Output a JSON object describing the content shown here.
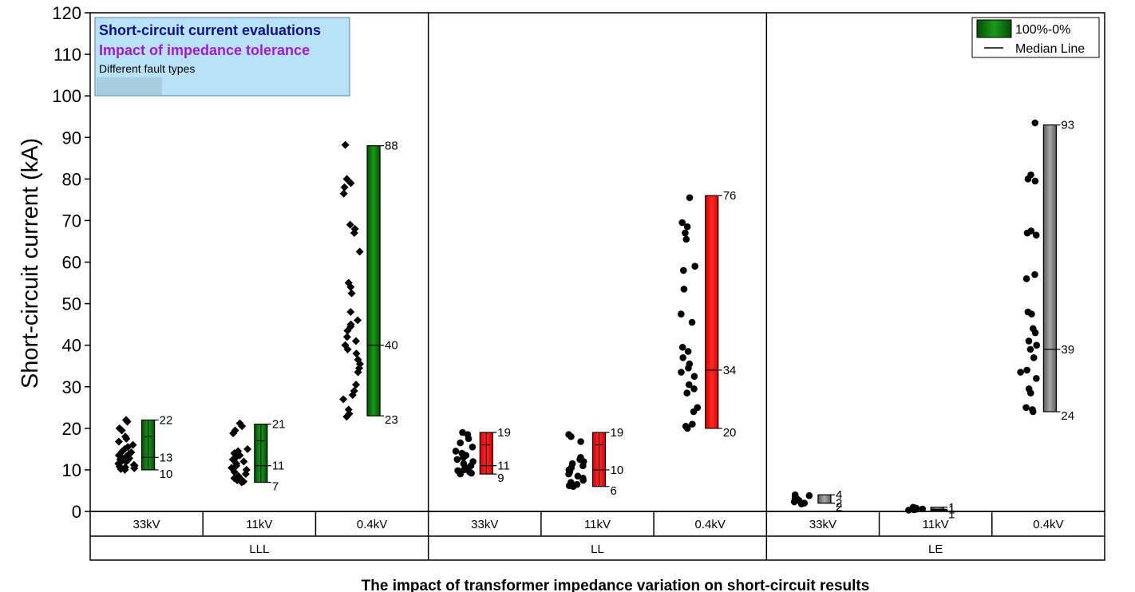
{
  "chart_data": {
    "type": "scatter",
    "title": "The impact of transformer impedance variation on short-circuit results",
    "ylabel": "Short-circuit current (kA)",
    "ylim": [
      0,
      120
    ],
    "yticks": [
      0,
      10,
      20,
      30,
      40,
      50,
      60,
      70,
      80,
      90,
      100,
      110,
      120
    ],
    "info_box": {
      "line1": "Short-circuit current evaluations",
      "line2": "Impact of impedance tolerance",
      "line3": "Different fault types"
    },
    "legend": {
      "range_label": "100%-0%",
      "median_label": "Median Line",
      "placement": "top-right"
    },
    "groups": [
      {
        "name": "LLL",
        "marker": "diamond",
        "box_color": "#0b6b0b",
        "categories": [
          {
            "name": "33kV",
            "min": 10,
            "median": 13,
            "max": 22,
            "min_label": "10",
            "median_label": "13",
            "max_label": "22",
            "box_mid": 18,
            "points": [
              22,
              21.6,
              20,
              19.5,
              18,
              17.5,
              16.8,
              16,
              15.5,
              15,
              14.5,
              14.2,
              13.8,
              13.5,
              13.2,
              13,
              12.8,
              12.5,
              12.2,
              12,
              11.8,
              11.5,
              11.2,
              11,
              10.8,
              10.6,
              10.4,
              10.2,
              10
            ]
          },
          {
            "name": "11kV",
            "min": 7,
            "median": 11,
            "max": 21,
            "min_label": "7",
            "median_label": "11",
            "max_label": "21",
            "box_mid": 17,
            "points": [
              21.2,
              20.5,
              19.5,
              18.8,
              15,
              14.5,
              14,
              13.5,
              13,
              12.5,
              12,
              11.5,
              11,
              10.5,
              10,
              9.5,
              9,
              8.5,
              8,
              7.8,
              7.5,
              7.2,
              7
            ]
          },
          {
            "name": "0.4kV",
            "min": 23,
            "median": 40,
            "max": 88,
            "min_label": "23",
            "median_label": "40",
            "max_label": "88",
            "points": [
              88.2,
              80,
              79,
              78,
              76.5,
              69,
              68,
              67,
              62.5,
              55,
              54,
              52.5,
              48,
              46,
              45,
              44.5,
              43.5,
              42,
              41,
              40,
              39,
              38,
              36.5,
              35.5,
              34.5,
              33.5,
              30.5,
              29,
              28,
              27,
              24.5,
              23.5,
              22.8
            ]
          }
        ]
      },
      {
        "name": "LL",
        "marker": "circle",
        "box_color": "#e81010",
        "categories": [
          {
            "name": "33kV",
            "min": 9,
            "median": 11,
            "max": 19,
            "min_label": "9",
            "median_label": "11",
            "max_label": "19",
            "box_mid": 16,
            "points": [
              19,
              18.5,
              17.5,
              16.5,
              15.5,
              14.5,
              14,
              13.5,
              13,
              12.5,
              12,
              11.5,
              11,
              10.5,
              10,
              9.8,
              9.5,
              9.2,
              9
            ]
          },
          {
            "name": "11kV",
            "min": 6,
            "median": 10,
            "max": 19,
            "min_label": "6",
            "median_label": "10",
            "max_label": "19",
            "box_mid": 16,
            "points": [
              18.5,
              18,
              16.8,
              13,
              12.5,
              12,
              11.5,
              11,
              10.5,
              10,
              9.5,
              9,
              8.5,
              8,
              7.5,
              7,
              6.5,
              6.2,
              6
            ]
          },
          {
            "name": "0.4kV",
            "min": 20,
            "median": 34,
            "max": 76,
            "min_label": "20",
            "median_label": "34",
            "max_label": "76",
            "points": [
              75.5,
              69.5,
              68.5,
              67,
              65.5,
              59,
              58,
              53.5,
              47.5,
              45.5,
              39.5,
              38.5,
              37,
              35.5,
              34.5,
              33.5,
              32.5,
              30.5,
              29.5,
              28.5,
              25,
              24,
              21,
              20.5,
              20
            ]
          }
        ]
      },
      {
        "name": "LE",
        "marker": "circle",
        "box_color": "#7b7b7b",
        "categories": [
          {
            "name": "33kV",
            "min": 2,
            "median": 2,
            "max": 4,
            "min_label": "2",
            "median_label": "2",
            "max_label": "4",
            "points": [
              4,
              3.8,
              3.5,
              3.2,
              3,
              2.6,
              2.3,
              2,
              1.8
            ]
          },
          {
            "name": "11kV",
            "min": 0.3,
            "median": 0.5,
            "max": 1,
            "min_label": "1",
            "median_label": "1",
            "max_label": "1",
            "points": [
              1,
              0.8,
              0.6,
              0.5,
              0.4,
              0.3
            ]
          },
          {
            "name": "0.4kV",
            "min": 24,
            "median": 39,
            "max": 93,
            "min_label": "24",
            "median_label": "39",
            "max_label": "93",
            "points": [
              93.5,
              81,
              80,
              79.5,
              67.5,
              67,
              66.5,
              57,
              56,
              48,
              47.5,
              44,
              43,
              41,
              40,
              39,
              37,
              34,
              33.5,
              32,
              29.5,
              28.5,
              25,
              24.5,
              24
            ]
          }
        ]
      }
    ]
  }
}
